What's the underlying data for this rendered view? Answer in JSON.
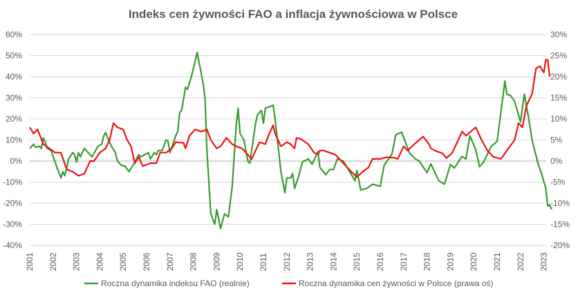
{
  "chart_data": {
    "type": "line",
    "title": "Indeks cen żywności FAO a inflacja żywnościowa w Polsce",
    "xlabel": "",
    "ylabel": "",
    "x_ticks": [
      "2001",
      "2002",
      "2003",
      "2004",
      "2005",
      "2006",
      "2007",
      "2008",
      "2009",
      "2010",
      "2011",
      "2012",
      "2013",
      "2014",
      "2015",
      "2016",
      "2017",
      "2018",
      "2019",
      "2020",
      "2021",
      "2022",
      "2023"
    ],
    "y_left": {
      "ticks": [
        "60%",
        "50%",
        "40%",
        "30%",
        "20%",
        "10%",
        "0%",
        "-10%",
        "-20%",
        "-30%",
        "-40%"
      ],
      "range": [
        -40,
        60
      ]
    },
    "y_right": {
      "ticks": [
        "30%",
        "25%",
        "20%",
        "15%",
        "10%",
        "5%",
        "0%",
        "-5%",
        "-10%",
        "-15%",
        "-20%"
      ],
      "range": [
        -20,
        30
      ]
    },
    "grid": true,
    "legend_position": "bottom",
    "series": [
      {
        "name": "Roczna dynamika indeksu FAO (realnie)",
        "axis": "left",
        "color": "#3a9a2f",
        "points": [
          [
            "2001-01",
            6
          ],
          [
            "2001-03",
            8
          ],
          [
            "2001-04",
            6.5
          ],
          [
            "2001-06",
            7
          ],
          [
            "2001-07",
            6
          ],
          [
            "2001-08",
            11
          ],
          [
            "2001-09",
            9
          ],
          [
            "2001-10",
            6
          ],
          [
            "2001-12",
            5
          ],
          [
            "2002-03",
            -3
          ],
          [
            "2002-05",
            -8
          ],
          [
            "2002-06",
            -5
          ],
          [
            "2002-07",
            -7
          ],
          [
            "2002-09",
            1
          ],
          [
            "2002-11",
            4
          ],
          [
            "2002-12",
            3
          ],
          [
            "2003-01",
            -0.5
          ],
          [
            "2003-02",
            4
          ],
          [
            "2003-03",
            2
          ],
          [
            "2003-05",
            6
          ],
          [
            "2003-07",
            4
          ],
          [
            "2003-09",
            2
          ],
          [
            "2003-12",
            7
          ],
          [
            "2004-02",
            8
          ],
          [
            "2004-03",
            12
          ],
          [
            "2004-04",
            13.5
          ],
          [
            "2004-05",
            11
          ],
          [
            "2004-07",
            7
          ],
          [
            "2004-09",
            4
          ],
          [
            "2004-10",
            0
          ],
          [
            "2004-12",
            -2
          ],
          [
            "2005-02",
            -2.5
          ],
          [
            "2005-04",
            -5
          ],
          [
            "2005-06",
            -2
          ],
          [
            "2005-09",
            3
          ],
          [
            "2005-10",
            2
          ],
          [
            "2006-02",
            4
          ],
          [
            "2006-03",
            1
          ],
          [
            "2006-05",
            4
          ],
          [
            "2006-06",
            3
          ],
          [
            "2006-07",
            5
          ],
          [
            "2006-09",
            5
          ],
          [
            "2006-11",
            10
          ],
          [
            "2006-12",
            9.5
          ],
          [
            "2007-01",
            4
          ],
          [
            "2007-04",
            12
          ],
          [
            "2007-05",
            14
          ],
          [
            "2007-06",
            23
          ],
          [
            "2007-07",
            24
          ],
          [
            "2007-09",
            35
          ],
          [
            "2007-10",
            34
          ],
          [
            "2007-12",
            40
          ],
          [
            "2008-03",
            51.5
          ],
          [
            "2008-06",
            37
          ],
          [
            "2008-07",
            30
          ],
          [
            "2008-08",
            5
          ],
          [
            "2008-10",
            -25
          ],
          [
            "2008-12",
            -30
          ],
          [
            "2009-01",
            -23
          ],
          [
            "2009-03",
            -32
          ],
          [
            "2009-05",
            -25
          ],
          [
            "2009-07",
            -26.5
          ],
          [
            "2009-09",
            -12
          ],
          [
            "2009-11",
            17
          ],
          [
            "2009-12",
            25
          ],
          [
            "2010-01",
            13
          ],
          [
            "2010-03",
            10
          ],
          [
            "2010-05",
            0
          ],
          [
            "2010-06",
            -1
          ],
          [
            "2010-09",
            18
          ],
          [
            "2010-10",
            22
          ],
          [
            "2010-12",
            24
          ],
          [
            "2011-01",
            18
          ],
          [
            "2011-02",
            25
          ],
          [
            "2011-06",
            26.5
          ],
          [
            "2011-07",
            20
          ],
          [
            "2011-10",
            -5
          ],
          [
            "2011-12",
            -15
          ],
          [
            "2012-01",
            -8
          ],
          [
            "2012-03",
            -8
          ],
          [
            "2012-04",
            -6
          ],
          [
            "2012-05",
            -13
          ],
          [
            "2012-07",
            -7.5
          ],
          [
            "2012-09",
            -0.5
          ],
          [
            "2012-12",
            1
          ],
          [
            "2013-02",
            -1.5
          ],
          [
            "2013-05",
            4.5
          ],
          [
            "2013-06",
            -3
          ],
          [
            "2013-09",
            -6.5
          ],
          [
            "2013-11",
            -4
          ],
          [
            "2014-01",
            -4
          ],
          [
            "2014-03",
            1
          ],
          [
            "2014-06",
            0
          ],
          [
            "2014-12",
            -9.3
          ],
          [
            "2015-01",
            -4.5
          ],
          [
            "2015-03",
            -13.7
          ],
          [
            "2015-06",
            -13
          ],
          [
            "2015-09",
            -11
          ],
          [
            "2016-01",
            -12
          ],
          [
            "2016-03",
            -2
          ],
          [
            "2016-07",
            3.3
          ],
          [
            "2016-09",
            12.5
          ],
          [
            "2016-12",
            13.7
          ],
          [
            "2017-02",
            8.7
          ],
          [
            "2017-04",
            3.8
          ],
          [
            "2017-07",
            1
          ],
          [
            "2017-09",
            0
          ],
          [
            "2018-01",
            -5.5
          ],
          [
            "2018-03",
            -1.3
          ],
          [
            "2018-07",
            -9.3
          ],
          [
            "2018-10",
            -11
          ],
          [
            "2019-01",
            -1.6
          ],
          [
            "2019-03",
            -3.3
          ],
          [
            "2019-07",
            2.2
          ],
          [
            "2019-09",
            1
          ],
          [
            "2019-11",
            12
          ],
          [
            "2020-02",
            5.5
          ],
          [
            "2020-04",
            -2.7
          ],
          [
            "2020-06",
            -0.5
          ],
          [
            "2020-10",
            7
          ],
          [
            "2021-01",
            9.3
          ],
          [
            "2021-05",
            38
          ],
          [
            "2021-06",
            31.7
          ],
          [
            "2021-08",
            31
          ],
          [
            "2021-10",
            28.4
          ],
          [
            "2022-01",
            18.6
          ],
          [
            "2022-03",
            31.7
          ],
          [
            "2022-05",
            21.3
          ],
          [
            "2022-07",
            9.8
          ],
          [
            "2022-10",
            -1.1
          ],
          [
            "2022-12",
            -6.6
          ],
          [
            "2023-02",
            -13
          ],
          [
            "2023-03",
            -21.3
          ],
          [
            "2023-04",
            -20.8
          ],
          [
            "2023-05",
            -23
          ]
        ]
      },
      {
        "name": "Roczna dynamika cen żywności w Polsce (prawa oś)",
        "axis": "right",
        "color": "#ee1111",
        "points": [
          [
            "2001-01",
            8
          ],
          [
            "2001-03",
            6.5
          ],
          [
            "2001-05",
            7.5
          ],
          [
            "2001-08",
            4
          ],
          [
            "2001-11",
            3
          ],
          [
            "2002-02",
            2
          ],
          [
            "2002-05",
            2
          ],
          [
            "2002-08",
            -2
          ],
          [
            "2002-11",
            -2.5
          ],
          [
            "2003-02",
            -3.5
          ],
          [
            "2003-05",
            -3
          ],
          [
            "2003-08",
            0
          ],
          [
            "2003-10",
            0
          ],
          [
            "2004-01",
            2
          ],
          [
            "2004-04",
            3
          ],
          [
            "2004-06",
            5
          ],
          [
            "2004-08",
            9
          ],
          [
            "2004-10",
            8
          ],
          [
            "2005-01",
            7.5
          ],
          [
            "2005-03",
            5
          ],
          [
            "2005-05",
            3.5
          ],
          [
            "2005-07",
            -0.5
          ],
          [
            "2005-09",
            1
          ],
          [
            "2005-11",
            -1.2
          ],
          [
            "2006-03",
            -0.5
          ],
          [
            "2006-06",
            -0.5
          ],
          [
            "2006-08",
            2
          ],
          [
            "2006-11",
            2
          ],
          [
            "2007-02",
            3
          ],
          [
            "2007-04",
            4.5
          ],
          [
            "2007-08",
            4.3
          ],
          [
            "2007-09",
            3
          ],
          [
            "2007-11",
            6
          ],
          [
            "2008-02",
            7.5
          ],
          [
            "2008-05",
            7
          ],
          [
            "2008-08",
            7.5
          ],
          [
            "2008-10",
            5
          ],
          [
            "2009-01",
            3
          ],
          [
            "2009-03",
            3.5
          ],
          [
            "2009-06",
            5.5
          ],
          [
            "2009-09",
            4
          ],
          [
            "2009-11",
            3.5
          ],
          [
            "2010-02",
            3
          ],
          [
            "2010-06",
            1
          ],
          [
            "2010-07",
            0.5
          ],
          [
            "2010-09",
            2.5
          ],
          [
            "2010-11",
            4.5
          ],
          [
            "2011-02",
            4
          ],
          [
            "2011-04",
            6.5
          ],
          [
            "2011-06",
            8.5
          ],
          [
            "2011-07",
            6.5
          ],
          [
            "2011-10",
            3.5
          ],
          [
            "2012-01",
            4.5
          ],
          [
            "2012-03",
            4
          ],
          [
            "2012-05",
            3
          ],
          [
            "2012-06",
            5.5
          ],
          [
            "2012-08",
            5.3
          ],
          [
            "2012-12",
            4
          ],
          [
            "2013-03",
            2
          ],
          [
            "2013-05",
            1.5
          ],
          [
            "2013-06",
            2.5
          ],
          [
            "2013-08",
            2.5
          ],
          [
            "2013-11",
            2
          ],
          [
            "2014-02",
            1.5
          ],
          [
            "2014-06",
            -0.5
          ],
          [
            "2014-09",
            -2
          ],
          [
            "2015-01",
            -3.8
          ],
          [
            "2015-04",
            -2.5
          ],
          [
            "2015-07",
            -1.5
          ],
          [
            "2015-09",
            0.5
          ],
          [
            "2016-01",
            0.5
          ],
          [
            "2016-04",
            0.9
          ],
          [
            "2016-08",
            0.8
          ],
          [
            "2016-10",
            0.5
          ],
          [
            "2017-01",
            3.5
          ],
          [
            "2017-03",
            2.5
          ],
          [
            "2017-06",
            3.8
          ],
          [
            "2017-09",
            5
          ],
          [
            "2017-11",
            5.8
          ],
          [
            "2018-02",
            4
          ],
          [
            "2018-03",
            3
          ],
          [
            "2018-05",
            2.5
          ],
          [
            "2018-09",
            1.8
          ],
          [
            "2018-11",
            0.7
          ],
          [
            "2019-02",
            2
          ],
          [
            "2019-05",
            5
          ],
          [
            "2019-07",
            7
          ],
          [
            "2019-09",
            6
          ],
          [
            "2020-02",
            8
          ],
          [
            "2020-05",
            5
          ],
          [
            "2020-08",
            2.5
          ],
          [
            "2020-11",
            1
          ],
          [
            "2021-03",
            0.5
          ],
          [
            "2021-06",
            2.5
          ],
          [
            "2021-10",
            5
          ],
          [
            "2021-12",
            9
          ],
          [
            "2022-02",
            8
          ],
          [
            "2022-04",
            13
          ],
          [
            "2022-07",
            16
          ],
          [
            "2022-09",
            22
          ],
          [
            "2022-11",
            22.5
          ],
          [
            "2023-01",
            21
          ],
          [
            "2023-02",
            24
          ],
          [
            "2023-03",
            24
          ],
          [
            "2023-04",
            20
          ]
        ]
      }
    ]
  }
}
